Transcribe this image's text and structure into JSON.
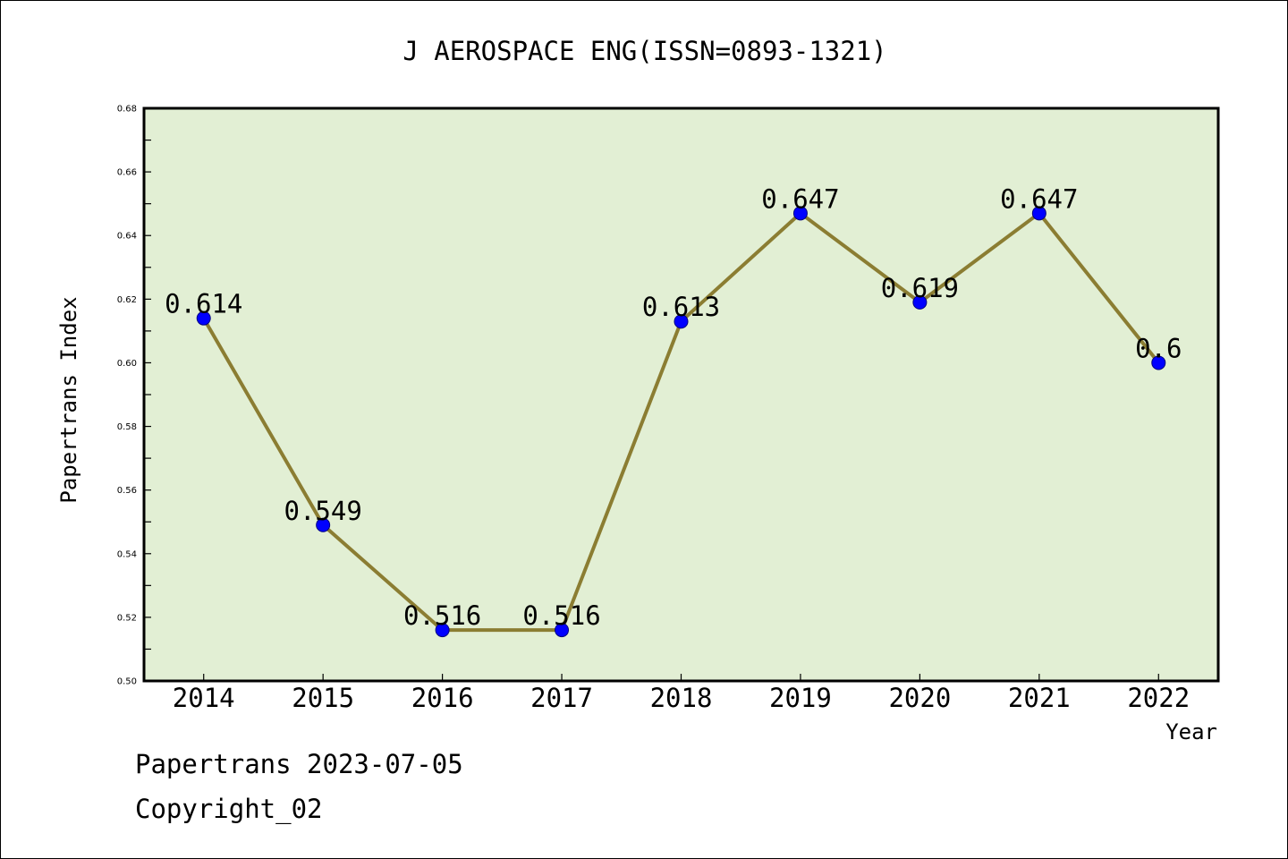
{
  "chart_data": {
    "type": "line",
    "title": "J AEROSPACE ENG(ISSN=0893-1321)",
    "xlabel": "Year",
    "ylabel": "Papertrans Index",
    "categories": [
      "2014",
      "2015",
      "2016",
      "2017",
      "2018",
      "2019",
      "2020",
      "2021",
      "2022"
    ],
    "values": [
      0.614,
      0.549,
      0.516,
      0.516,
      0.613,
      0.647,
      0.619,
      0.647,
      0.6
    ],
    "data_labels": [
      "0.614",
      "0.549",
      "0.516",
      "0.516",
      "0.613",
      "0.647",
      "0.619",
      "0.647",
      "0.6"
    ],
    "ylim": [
      0.5,
      0.68
    ],
    "yticks": [
      "0.50",
      "0.52",
      "0.54",
      "0.56",
      "0.58",
      "0.60",
      "0.62",
      "0.64",
      "0.66",
      "0.68"
    ],
    "grid": false,
    "legend": "none",
    "colors": {
      "plot_background": "#e2efd4",
      "line": "#8b7d32",
      "marker": "#0000ff",
      "marker_edge": "#000080",
      "axes": "#000000"
    }
  },
  "footer": {
    "date_line": "Papertrans 2023-07-05",
    "copyright": "Copyright_02"
  }
}
